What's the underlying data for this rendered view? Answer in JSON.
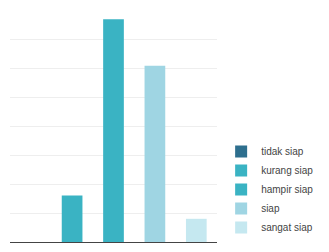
{
  "chart_data": {
    "type": "bar",
    "categories": [
      "tidak siap",
      "kurang siap",
      "hampir siap",
      "siap",
      "sangat siap"
    ],
    "values": [
      0,
      10,
      48,
      38,
      5
    ],
    "colors": [
      "#2e6f8e",
      "#3ab3c3",
      "#3ab3c3",
      "#9fd5e3",
      "#c5e8f0"
    ],
    "ylim": [
      0,
      50
    ],
    "yticks": [
      0,
      6.25,
      12.5,
      18.75,
      25,
      31.25,
      37.5,
      43.75,
      50
    ],
    "grid": true,
    "tick_labels": false,
    "legend": "lower right"
  }
}
